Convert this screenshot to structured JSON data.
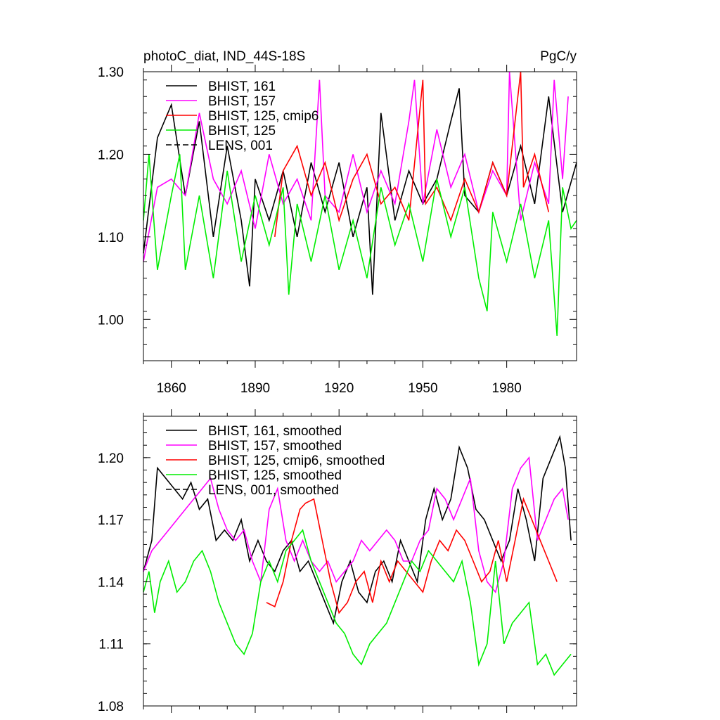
{
  "chart_data": [
    {
      "type": "line",
      "title": "photoC_diat, IND_44S-18S",
      "units": "PgC/y",
      "xlim": [
        1850,
        2005
      ],
      "ylim": [
        0.95,
        1.3
      ],
      "x_ticks": [
        1860,
        1890,
        1920,
        1950,
        1980
      ],
      "y_ticks": [
        1.0,
        1.1,
        1.2,
        1.3
      ],
      "y_tick_labels": [
        "1.00",
        "1.10",
        "1.20",
        "1.30"
      ],
      "legend_position": "top-left",
      "series": [
        {
          "name": "BHIST, 161",
          "color": "#000000",
          "dash": "solid",
          "x": [
            1850,
            1855,
            1860,
            1865,
            1870,
            1875,
            1880,
            1885,
            1888,
            1890,
            1895,
            1900,
            1905,
            1910,
            1915,
            1920,
            1925,
            1930,
            1932,
            1935,
            1940,
            1945,
            1950,
            1955,
            1960,
            1963,
            1965,
            1970,
            1975,
            1980,
            1985,
            1990,
            1995,
            2000,
            2005
          ],
          "values": [
            1.08,
            1.22,
            1.26,
            1.15,
            1.24,
            1.1,
            1.21,
            1.12,
            1.04,
            1.17,
            1.12,
            1.18,
            1.1,
            1.19,
            1.13,
            1.19,
            1.1,
            1.16,
            1.03,
            1.25,
            1.12,
            1.18,
            1.14,
            1.17,
            1.24,
            1.28,
            1.15,
            1.13,
            1.19,
            1.15,
            1.21,
            1.14,
            1.27,
            1.13,
            1.19
          ]
        },
        {
          "name": "BHIST, 157",
          "color": "#ff00ff",
          "dash": "solid",
          "x": [
            1850,
            1855,
            1860,
            1865,
            1870,
            1875,
            1880,
            1885,
            1890,
            1895,
            1900,
            1905,
            1910,
            1913,
            1915,
            1920,
            1925,
            1930,
            1935,
            1940,
            1945,
            1947,
            1950,
            1955,
            1960,
            1965,
            1970,
            1975,
            1980,
            1981,
            1985,
            1990,
            1995,
            1997,
            2000,
            2002
          ],
          "values": [
            1.07,
            1.16,
            1.17,
            1.15,
            1.25,
            1.17,
            1.14,
            1.18,
            1.11,
            1.2,
            1.14,
            1.17,
            1.12,
            1.29,
            1.15,
            1.13,
            1.2,
            1.13,
            1.18,
            1.14,
            1.24,
            1.29,
            1.14,
            1.23,
            1.16,
            1.2,
            1.13,
            1.18,
            1.15,
            1.3,
            1.12,
            1.19,
            1.14,
            1.29,
            1.17,
            1.27
          ]
        },
        {
          "name": "BHIST, 125, cmip6",
          "color": "#ff0000",
          "dash": "solid",
          "x": [
            1897,
            1900,
            1905,
            1910,
            1915,
            1920,
            1925,
            1930,
            1935,
            1940,
            1945,
            1950,
            1951,
            1955,
            1960,
            1965,
            1970,
            1975,
            1980,
            1985,
            1986,
            1990,
            1995
          ],
          "values": [
            1.1,
            1.18,
            1.21,
            1.15,
            1.19,
            1.12,
            1.17,
            1.2,
            1.14,
            1.16,
            1.12,
            1.29,
            1.14,
            1.16,
            1.12,
            1.17,
            1.13,
            1.19,
            1.15,
            1.3,
            1.16,
            1.2,
            1.13
          ]
        },
        {
          "name": "BHIST, 125",
          "color": "#00ee00",
          "dash": "solid",
          "x": [
            1850,
            1852,
            1855,
            1860,
            1863,
            1865,
            1870,
            1875,
            1880,
            1885,
            1890,
            1895,
            1900,
            1902,
            1905,
            1910,
            1915,
            1920,
            1925,
            1930,
            1935,
            1940,
            1945,
            1950,
            1955,
            1960,
            1965,
            1970,
            1973,
            1975,
            1980,
            1985,
            1990,
            1995,
            1998,
            2000,
            2003,
            2005
          ],
          "values": [
            1.12,
            1.2,
            1.06,
            1.15,
            1.2,
            1.06,
            1.15,
            1.05,
            1.18,
            1.07,
            1.15,
            1.09,
            1.16,
            1.03,
            1.14,
            1.07,
            1.15,
            1.06,
            1.12,
            1.05,
            1.16,
            1.09,
            1.14,
            1.07,
            1.17,
            1.1,
            1.16,
            1.05,
            1.01,
            1.13,
            1.07,
            1.14,
            1.05,
            1.12,
            0.98,
            1.16,
            1.11,
            1.12
          ]
        },
        {
          "name": "LENS, 001",
          "color": "#000000",
          "dash": "dashed",
          "x": [],
          "values": []
        }
      ]
    },
    {
      "type": "line",
      "xlim": [
        1850,
        2005
      ],
      "ylim": [
        1.08,
        1.22
      ],
      "y_ticks": [
        1.08,
        1.11,
        1.14,
        1.17,
        1.2
      ],
      "y_tick_labels": [
        "1.08",
        "1.11",
        "1.14",
        "1.17",
        "1.20"
      ],
      "legend_position": "top-left",
      "series": [
        {
          "name": "BHIST, 161, smoothed",
          "color": "#000000",
          "dash": "solid",
          "x": [
            1850,
            1853,
            1855,
            1858,
            1861,
            1864,
            1867,
            1870,
            1873,
            1876,
            1879,
            1882,
            1885,
            1888,
            1891,
            1894,
            1897,
            1900,
            1903,
            1906,
            1909,
            1912,
            1915,
            1918,
            1921,
            1924,
            1927,
            1930,
            1933,
            1936,
            1939,
            1942,
            1945,
            1948,
            1951,
            1954,
            1957,
            1960,
            1963,
            1966,
            1969,
            1972,
            1975,
            1978,
            1981,
            1984,
            1987,
            1990,
            1993,
            1996,
            1999,
            2001,
            2003
          ],
          "values": [
            1.145,
            1.16,
            1.195,
            1.19,
            1.185,
            1.18,
            1.188,
            1.175,
            1.18,
            1.16,
            1.165,
            1.16,
            1.17,
            1.15,
            1.16,
            1.15,
            1.145,
            1.155,
            1.16,
            1.145,
            1.15,
            1.14,
            1.13,
            1.12,
            1.14,
            1.15,
            1.135,
            1.13,
            1.145,
            1.15,
            1.14,
            1.16,
            1.15,
            1.14,
            1.17,
            1.185,
            1.17,
            1.18,
            1.205,
            1.195,
            1.175,
            1.17,
            1.16,
            1.15,
            1.16,
            1.185,
            1.17,
            1.15,
            1.19,
            1.2,
            1.21,
            1.195,
            1.16
          ]
        },
        {
          "name": "BHIST, 157, smoothed",
          "color": "#ff00ff",
          "dash": "solid",
          "x": [
            1850,
            1853,
            1856,
            1859,
            1862,
            1865,
            1868,
            1871,
            1874,
            1877,
            1880,
            1883,
            1886,
            1889,
            1892,
            1895,
            1898,
            1901,
            1904,
            1907,
            1910,
            1913,
            1916,
            1919,
            1922,
            1925,
            1928,
            1931,
            1934,
            1937,
            1940,
            1943,
            1946,
            1949,
            1952,
            1955,
            1958,
            1961,
            1964,
            1967,
            1970,
            1973,
            1976,
            1979,
            1982,
            1985,
            1988,
            1991,
            1994,
            1997,
            2000,
            2002
          ],
          "values": [
            1.145,
            1.155,
            1.16,
            1.165,
            1.17,
            1.175,
            1.18,
            1.185,
            1.19,
            1.175,
            1.165,
            1.16,
            1.165,
            1.15,
            1.14,
            1.175,
            1.185,
            1.16,
            1.15,
            1.16,
            1.15,
            1.145,
            1.15,
            1.14,
            1.145,
            1.15,
            1.16,
            1.155,
            1.16,
            1.165,
            1.16,
            1.15,
            1.15,
            1.16,
            1.165,
            1.185,
            1.18,
            1.17,
            1.18,
            1.19,
            1.155,
            1.14,
            1.135,
            1.15,
            1.185,
            1.195,
            1.2,
            1.16,
            1.17,
            1.18,
            1.185,
            1.17
          ]
        },
        {
          "name": "BHIST, 125, cmip6, smoothed",
          "color": "#ff0000",
          "dash": "solid",
          "x": [
            1894,
            1897,
            1900,
            1903,
            1906,
            1908,
            1911,
            1914,
            1917,
            1920,
            1923,
            1926,
            1929,
            1932,
            1935,
            1938,
            1941,
            1944,
            1947,
            1950,
            1953,
            1956,
            1959,
            1962,
            1965,
            1968,
            1971,
            1974,
            1977,
            1980,
            1983,
            1986,
            1989,
            1992,
            1995,
            1998
          ],
          "values": [
            1.13,
            1.128,
            1.14,
            1.16,
            1.175,
            1.178,
            1.18,
            1.16,
            1.14,
            1.125,
            1.13,
            1.14,
            1.145,
            1.13,
            1.15,
            1.14,
            1.15,
            1.145,
            1.14,
            1.135,
            1.15,
            1.16,
            1.155,
            1.165,
            1.16,
            1.15,
            1.14,
            1.145,
            1.16,
            1.14,
            1.16,
            1.18,
            1.17,
            1.16,
            1.15,
            1.14
          ]
        },
        {
          "name": "BHIST, 125, smoothed",
          "color": "#00ee00",
          "dash": "solid",
          "x": [
            1850,
            1852,
            1854,
            1856,
            1859,
            1862,
            1865,
            1868,
            1871,
            1874,
            1877,
            1880,
            1883,
            1886,
            1889,
            1892,
            1895,
            1898,
            1901,
            1904,
            1907,
            1910,
            1913,
            1916,
            1919,
            1922,
            1925,
            1928,
            1931,
            1934,
            1937,
            1940,
            1943,
            1946,
            1949,
            1952,
            1955,
            1958,
            1961,
            1964,
            1967,
            1970,
            1973,
            1976,
            1979,
            1982,
            1985,
            1988,
            1991,
            1994,
            1997,
            2000,
            2003
          ],
          "values": [
            1.135,
            1.145,
            1.125,
            1.14,
            1.15,
            1.135,
            1.14,
            1.15,
            1.155,
            1.145,
            1.13,
            1.12,
            1.11,
            1.105,
            1.115,
            1.14,
            1.15,
            1.14,
            1.155,
            1.16,
            1.165,
            1.15,
            1.14,
            1.13,
            1.12,
            1.115,
            1.105,
            1.1,
            1.11,
            1.115,
            1.12,
            1.13,
            1.14,
            1.15,
            1.145,
            1.155,
            1.15,
            1.145,
            1.14,
            1.15,
            1.13,
            1.1,
            1.11,
            1.15,
            1.11,
            1.12,
            1.125,
            1.13,
            1.1,
            1.105,
            1.095,
            1.1,
            1.105
          ]
        },
        {
          "name": "LENS, 001, smoothed",
          "color": "#000000",
          "dash": "dashed",
          "x": [],
          "values": []
        }
      ]
    }
  ]
}
